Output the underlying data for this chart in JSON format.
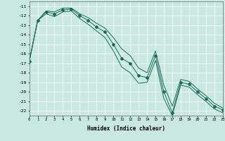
{
  "xlabel": "Humidex (Indice chaleur)",
  "bg_color": "#c8e8e0",
  "grid_color": "#ffffff",
  "line_color": "#1a6b5a",
  "xlim": [
    0,
    23
  ],
  "ylim": [
    -22.5,
    -10.5
  ],
  "yticks": [
    -11,
    -12,
    -13,
    -14,
    -15,
    -16,
    -17,
    -18,
    -19,
    -20,
    -21,
    -22
  ],
  "xticks": [
    0,
    1,
    2,
    3,
    4,
    5,
    6,
    7,
    8,
    9,
    10,
    11,
    12,
    13,
    14,
    15,
    16,
    17,
    18,
    19,
    20,
    21,
    22,
    23
  ],
  "series_main": {
    "x": [
      0,
      1,
      2,
      3,
      4,
      5,
      6,
      7,
      8,
      9,
      10,
      11,
      12,
      13,
      14,
      15,
      16,
      17,
      18,
      19,
      20,
      21,
      22,
      23
    ],
    "y": [
      -16.8,
      -12.5,
      -11.6,
      -11.8,
      -11.4,
      -11.3,
      -12.0,
      -12.5,
      -13.2,
      -13.7,
      -15.0,
      -16.5,
      -17.0,
      -18.3,
      -18.5,
      -16.2,
      -20.0,
      -22.2,
      -19.0,
      -19.2,
      -20.0,
      -20.7,
      -21.5,
      -21.9
    ]
  },
  "series_upper": {
    "x": [
      0,
      1,
      2,
      3,
      4,
      5,
      6,
      7,
      8,
      9,
      10,
      11,
      12,
      13,
      14,
      15,
      16,
      17,
      18,
      19,
      20,
      21,
      22,
      23
    ],
    "y": [
      -16.8,
      -12.5,
      -11.5,
      -11.6,
      -11.2,
      -11.2,
      -11.8,
      -12.2,
      -12.8,
      -13.3,
      -14.3,
      -15.5,
      -16.2,
      -17.5,
      -18.0,
      -15.7,
      -19.3,
      -21.5,
      -18.7,
      -18.9,
      -19.7,
      -20.4,
      -21.2,
      -21.7
    ]
  },
  "series_lower": {
    "x": [
      0,
      1,
      2,
      3,
      4,
      5,
      6,
      7,
      8,
      9,
      10,
      11,
      12,
      13,
      14,
      15,
      16,
      17,
      18,
      19,
      20,
      21,
      22,
      23
    ],
    "y": [
      -16.8,
      -12.5,
      -11.8,
      -12.1,
      -11.6,
      -11.5,
      -12.3,
      -12.9,
      -13.6,
      -14.3,
      -15.7,
      -17.4,
      -18.0,
      -19.1,
      -19.0,
      -16.7,
      -20.7,
      -22.5,
      -19.3,
      -19.5,
      -20.3,
      -21.0,
      -21.8,
      -22.2
    ]
  }
}
